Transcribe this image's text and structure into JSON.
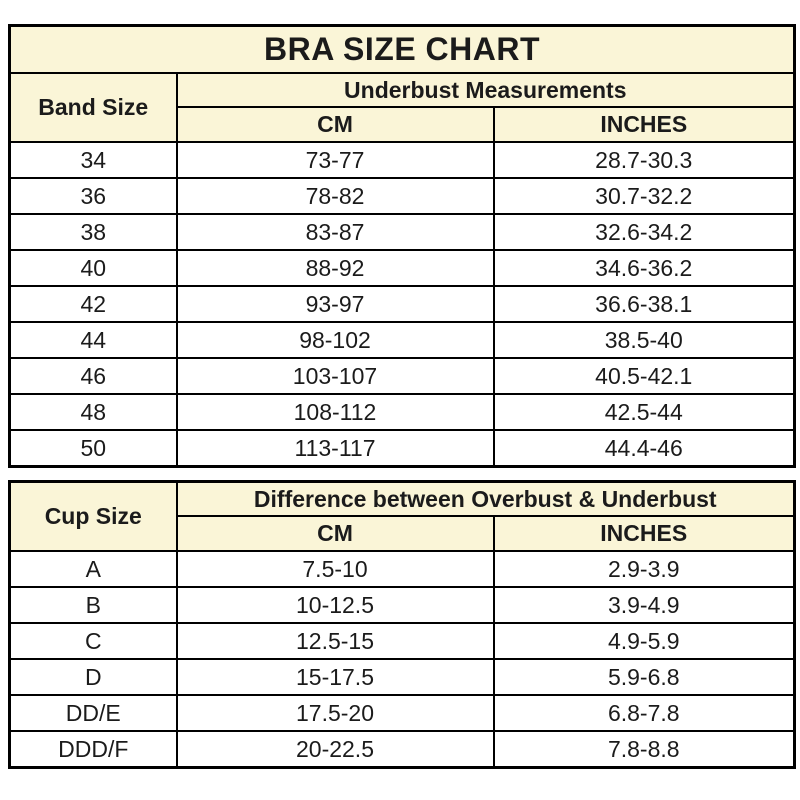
{
  "title": "BRA SIZE CHART",
  "colors": {
    "header_bg": "#faf5d7",
    "row_bg": "#ffffff",
    "border": "#000000",
    "text": "#1b1b1b"
  },
  "band_table": {
    "row_header": "Band Size",
    "group_header": "Underbust Measurements",
    "col_headers": [
      "CM",
      "INCHES"
    ],
    "rows": [
      {
        "size": "34",
        "cm": "73-77",
        "inches": "28.7-30.3"
      },
      {
        "size": "36",
        "cm": "78-82",
        "inches": "30.7-32.2"
      },
      {
        "size": "38",
        "cm": "83-87",
        "inches": "32.6-34.2"
      },
      {
        "size": "40",
        "cm": "88-92",
        "inches": "34.6-36.2"
      },
      {
        "size": "42",
        "cm": "93-97",
        "inches": "36.6-38.1"
      },
      {
        "size": "44",
        "cm": "98-102",
        "inches": "38.5-40"
      },
      {
        "size": "46",
        "cm": "103-107",
        "inches": "40.5-42.1"
      },
      {
        "size": "48",
        "cm": "108-112",
        "inches": "42.5-44"
      },
      {
        "size": "50",
        "cm": "113-117",
        "inches": "44.4-46"
      }
    ]
  },
  "cup_table": {
    "row_header": "Cup Size",
    "group_header": "Difference between Overbust & Underbust",
    "col_headers": [
      "CM",
      "INCHES"
    ],
    "rows": [
      {
        "size": "A",
        "cm": "7.5-10",
        "inches": "2.9-3.9"
      },
      {
        "size": "B",
        "cm": "10-12.5",
        "inches": "3.9-4.9"
      },
      {
        "size": "C",
        "cm": "12.5-15",
        "inches": "4.9-5.9"
      },
      {
        "size": "D",
        "cm": "15-17.5",
        "inches": "5.9-6.8"
      },
      {
        "size": "DD/E",
        "cm": "17.5-20",
        "inches": "6.8-7.8"
      },
      {
        "size": "DDD/F",
        "cm": "20-22.5",
        "inches": "7.8-8.8"
      }
    ]
  },
  "chart_data": [
    {
      "type": "table",
      "title": "BRA SIZE CHART",
      "group_header": "Underbust Measurements",
      "columns": [
        "Band Size",
        "CM",
        "INCHES"
      ],
      "rows": [
        [
          "34",
          "73-77",
          "28.7-30.3"
        ],
        [
          "36",
          "78-82",
          "30.7-32.2"
        ],
        [
          "38",
          "83-87",
          "32.6-34.2"
        ],
        [
          "40",
          "88-92",
          "34.6-36.2"
        ],
        [
          "42",
          "93-97",
          "36.6-38.1"
        ],
        [
          "44",
          "98-102",
          "38.5-40"
        ],
        [
          "46",
          "103-107",
          "40.5-42.1"
        ],
        [
          "48",
          "108-112",
          "42.5-44"
        ],
        [
          "50",
          "113-117",
          "44.4-46"
        ]
      ]
    },
    {
      "type": "table",
      "title": "",
      "group_header": "Difference between Overbust & Underbust",
      "columns": [
        "Cup Size",
        "CM",
        "INCHES"
      ],
      "rows": [
        [
          "A",
          "7.5-10",
          "2.9-3.9"
        ],
        [
          "B",
          "10-12.5",
          "3.9-4.9"
        ],
        [
          "C",
          "12.5-15",
          "4.9-5.9"
        ],
        [
          "D",
          "15-17.5",
          "5.9-6.8"
        ],
        [
          "DD/E",
          "17.5-20",
          "6.8-7.8"
        ],
        [
          "DDD/F",
          "20-22.5",
          "7.8-8.8"
        ]
      ]
    }
  ]
}
